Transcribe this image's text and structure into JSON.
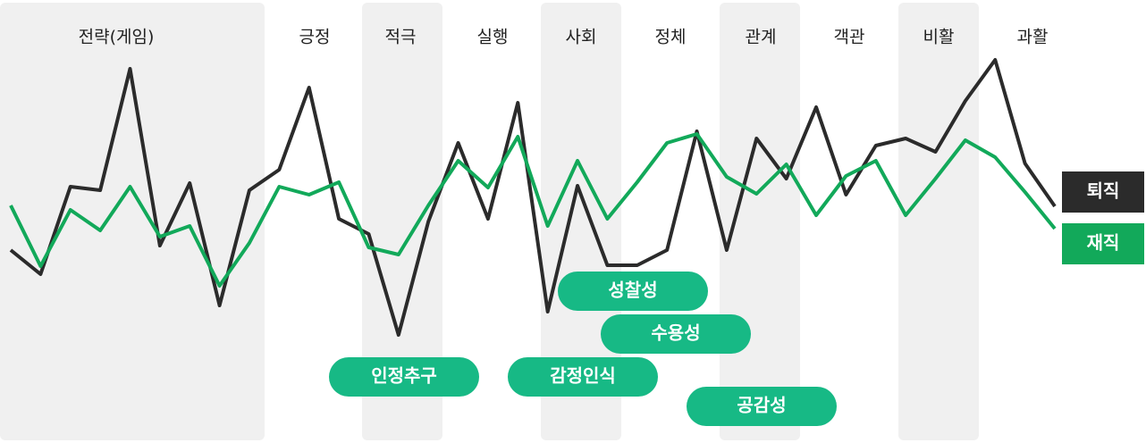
{
  "chart_data": {
    "type": "line",
    "columns": [
      {
        "label": "전략(게임)",
        "shaded": true
      },
      {
        "label": "긍정",
        "shaded": false
      },
      {
        "label": "적극",
        "shaded": true
      },
      {
        "label": "실행",
        "shaded": false
      },
      {
        "label": "사회",
        "shaded": true
      },
      {
        "label": "정체",
        "shaded": false
      },
      {
        "label": "관계",
        "shaded": true
      },
      {
        "label": "객관",
        "shaded": false
      },
      {
        "label": "비활",
        "shaded": true
      },
      {
        "label": "과활",
        "shaded": false
      }
    ],
    "ylim": [
      0,
      340
    ],
    "series": [
      {
        "name": "퇴직",
        "color": "#2b2b2b",
        "values": [
          120,
          93,
          191,
          187,
          323,
          125,
          195,
          58,
          187,
          210,
          302,
          155,
          138,
          25,
          152,
          240,
          155,
          285,
          51,
          192,
          103,
          103,
          120,
          253,
          120,
          245,
          200,
          280,
          182,
          237,
          245,
          230,
          287,
          333,
          217,
          169
        ]
      },
      {
        "name": "재직",
        "color": "#12a95a",
        "values": [
          170,
          102,
          165,
          142,
          191,
          135,
          147,
          80,
          128,
          191,
          182,
          196,
          123,
          115,
          170,
          220,
          190,
          247,
          147,
          220,
          155,
          196,
          240,
          250,
          202,
          183,
          216,
          159,
          203,
          220,
          159,
          200,
          243,
          224,
          185,
          144
        ]
      }
    ],
    "annotations": [
      "인정추구",
      "감정인식",
      "성찰성",
      "수용성",
      "공감성"
    ],
    "annotation_color": "#17b985"
  }
}
